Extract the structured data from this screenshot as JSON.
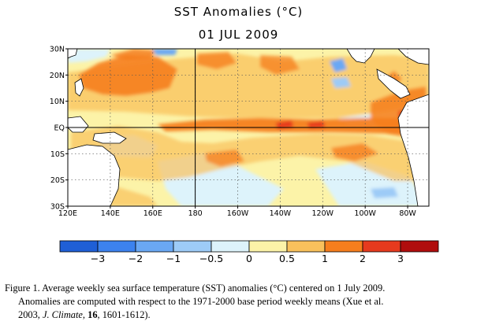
{
  "chart_data": {
    "type": "heatmap",
    "title": "SST Anomalies (°C)",
    "subtitle": "01 JUL 2009",
    "x_ticks": [
      "120E",
      "140E",
      "160E",
      "180",
      "160W",
      "140W",
      "120W",
      "100W",
      "80W"
    ],
    "x_values": [
      120,
      140,
      160,
      180,
      200,
      220,
      240,
      260,
      280
    ],
    "xlim": [
      120,
      290
    ],
    "y_ticks": [
      "30N",
      "20N",
      "10N",
      "EQ",
      "10S",
      "20S",
      "30S"
    ],
    "y_values": [
      30,
      20,
      10,
      0,
      -10,
      -20,
      -30
    ],
    "ylim": [
      -30,
      30
    ],
    "colorbar": {
      "levels": [
        -3,
        -2,
        -1,
        -0.5,
        0,
        0.5,
        1,
        2,
        3
      ],
      "labels": [
        "−3",
        "−2",
        "−1",
        "−0.5",
        "0",
        "0.5",
        "1",
        "2",
        "3"
      ],
      "colors": [
        "#1f5fd6",
        "#3c82ee",
        "#6aa8f4",
        "#9dcbf7",
        "#ddf3fb",
        "#fcf3a8",
        "#f9c15c",
        "#f67e1d",
        "#e63a1e",
        "#b00d0d"
      ]
    },
    "anomaly_regions": [
      {
        "lon": [
          145,
          178
        ],
        "lat": [
          13,
          26
        ],
        "level": "1 to 2"
      },
      {
        "lon": [
          190,
          260
        ],
        "lat": [
          -1,
          2
        ],
        "level": "1 to 2"
      },
      {
        "lon": [
          255,
          285
        ],
        "lat": [
          -8,
          2
        ],
        "level": "1 to 2"
      },
      {
        "lon": [
          125,
          175
        ],
        "lat": [
          -10,
          -2
        ],
        "level": "0.5 to 1"
      },
      {
        "lon": [
          200,
          250
        ],
        "lat": [
          -30,
          -18
        ],
        "level": "-0.5 to 0"
      },
      {
        "lon": [
          175,
          200
        ],
        "lat": [
          -20,
          -10
        ],
        "level": "0 to 0.5"
      },
      {
        "lon": [
          150,
          160
        ],
        "lat": [
          28,
          30
        ],
        "level": "-1 to -0.5"
      },
      {
        "lon": [
          240,
          248
        ],
        "lat": [
          17,
          22
        ],
        "level": "-1 to -0.5"
      }
    ]
  },
  "caption": {
    "line1": "Figure 1. Average weekly sea surface temperature (SST) anomalies (°C) centered on 1 July 2009.",
    "line2": "Anomalies are computed with respect to the 1971-2000 base period weekly means (Xue et al.",
    "line3_pre": "2003, ",
    "journal": "J. Climate",
    "sep1": ", ",
    "volume": "16",
    "line3_post": ", 1601-1612)."
  }
}
